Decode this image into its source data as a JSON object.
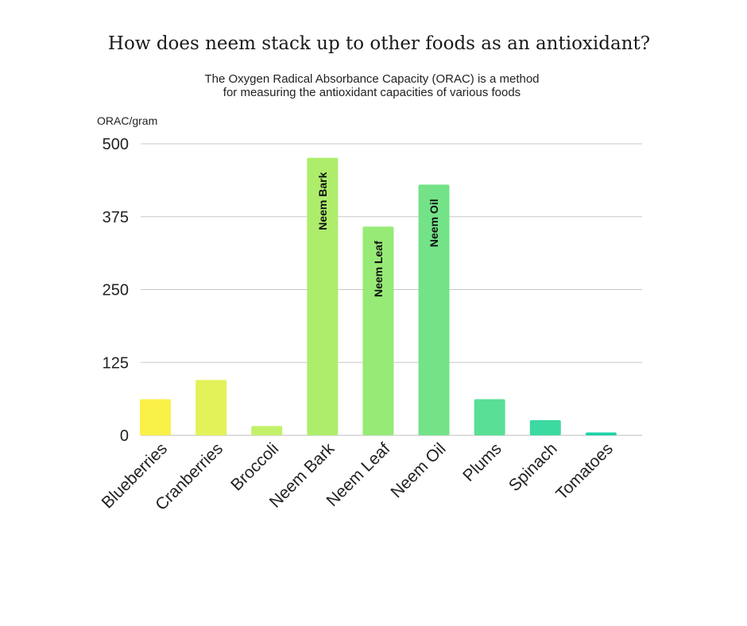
{
  "chart_data": {
    "type": "bar",
    "title": "How does neem stack up to other foods as an antioxidant?",
    "subtitle": [
      "The Oxygen Radical Absorbance Capacity (ORAC) is a method",
      "for measuring the antioxidant capacities of various foods"
    ],
    "ylabel": "ORAC/gram",
    "xlabel": "",
    "ylim": [
      0,
      500
    ],
    "yticks": [
      0,
      125,
      250,
      375,
      500
    ],
    "grid": true,
    "categories": [
      "Blueberries",
      "Cranberries",
      "Broccoli",
      "Neem Bark",
      "Neem Leaf",
      "Neem Oil",
      "Plums",
      "Spinach",
      "Tomatoes"
    ],
    "values": [
      62,
      95,
      16,
      476,
      358,
      430,
      62,
      26,
      5
    ],
    "colors": [
      "#f9f048",
      "#e3f259",
      "#c3f06a",
      "#aeed6c",
      "#97ea76",
      "#74e388",
      "#59df96",
      "#3cd9a1",
      "#1cd3a8"
    ],
    "bar_labels": [
      "",
      "",
      "",
      "Neem Bark",
      "Neem Leaf",
      "Neem Oil",
      "",
      "",
      ""
    ]
  }
}
